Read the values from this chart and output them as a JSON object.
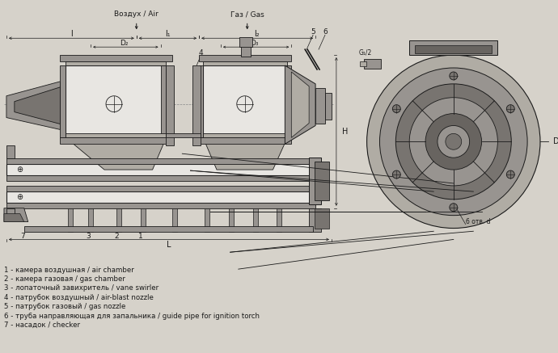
{
  "bg_color": "#d6d2ca",
  "lc": "#1a1a1a",
  "gray1": "#b0aca4",
  "gray2": "#989490",
  "gray3": "#787470",
  "gray_dark": "#686460",
  "white_area": "#e8e6e2",
  "legend": [
    "1 - камера воздушная / air chamber",
    "2 - камера газовая / gas chamber",
    "3 - лопаточный завихритель / vane swirler",
    "4 - патрубок воздушный / air-blast nozzle",
    "5 - патрубок газовый / gas nozzle",
    "6 - труба направляющая для запальника / guide pipe for ignition torch",
    "7 - насадок / checker"
  ]
}
